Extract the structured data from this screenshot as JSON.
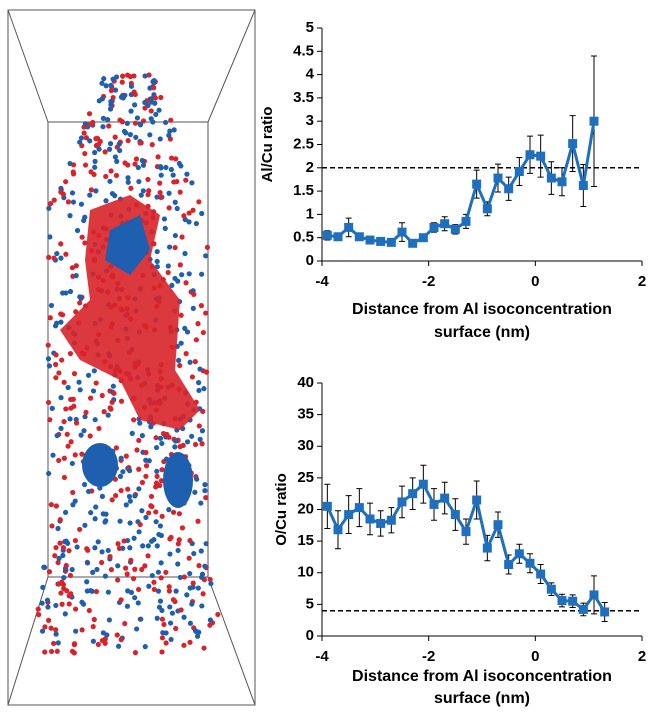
{
  "chart_data": [
    {
      "type": "line",
      "ylabel": "Al/Cu ratio",
      "xlabel": [
        "Distance from Al isoconcentration",
        "surface (nm)"
      ],
      "x": [
        -3.9,
        -3.7,
        -3.5,
        -3.3,
        -3.1,
        -2.9,
        -2.7,
        -2.5,
        -2.3,
        -2.1,
        -1.9,
        -1.7,
        -1.5,
        -1.3,
        -1.1,
        -0.9,
        -0.7,
        -0.5,
        -0.3,
        -0.1,
        0.1,
        0.3,
        0.5,
        0.7,
        0.9,
        1.1
      ],
      "values": [
        0.55,
        0.52,
        0.72,
        0.52,
        0.45,
        0.42,
        0.4,
        0.62,
        0.38,
        0.5,
        0.72,
        0.8,
        0.68,
        0.85,
        1.65,
        1.12,
        1.78,
        1.55,
        1.92,
        2.28,
        2.25,
        1.78,
        1.7,
        2.52,
        1.62,
        3.0
      ],
      "errors": [
        0.1,
        0.08,
        0.2,
        0.08,
        0.05,
        0.05,
        0.05,
        0.2,
        0.05,
        0.08,
        0.1,
        0.15,
        0.1,
        0.15,
        0.3,
        0.15,
        0.3,
        0.25,
        0.3,
        0.4,
        0.45,
        0.35,
        0.3,
        0.6,
        0.45,
        1.4
      ],
      "color": "#1f6fbf",
      "reference_line": 2,
      "xlim": [
        -4,
        2
      ],
      "xticks": [
        -4,
        -2,
        0,
        2
      ],
      "ylim": [
        0,
        5
      ],
      "yticks": [
        0,
        0.5,
        1,
        1.5,
        2,
        2.5,
        3,
        3.5,
        4,
        4.5,
        5
      ]
    },
    {
      "type": "line",
      "ylabel": "O/Cu ratio",
      "xlabel": [
        "Distance from Al isoconcentration",
        "surface (nm)"
      ],
      "x": [
        -3.9,
        -3.7,
        -3.5,
        -3.3,
        -3.1,
        -2.9,
        -2.7,
        -2.5,
        -2.3,
        -2.1,
        -1.9,
        -1.7,
        -1.5,
        -1.3,
        -1.1,
        -0.9,
        -0.7,
        -0.5,
        -0.3,
        -0.1,
        0.1,
        0.3,
        0.5,
        0.7,
        0.9,
        1.1,
        1.3
      ],
      "values": [
        20.5,
        16.8,
        19.2,
        20.3,
        18.5,
        17.8,
        18.3,
        21.2,
        22.5,
        24.0,
        20.8,
        21.8,
        19.2,
        16.5,
        21.5,
        13.9,
        17.6,
        11.3,
        13.0,
        11.5,
        9.8,
        7.4,
        5.6,
        5.5,
        4.2,
        6.5,
        3.8
      ],
      "errors": [
        3.5,
        3,
        3,
        3,
        2.5,
        2,
        2,
        2.5,
        2.5,
        3,
        2.5,
        2.5,
        2.5,
        2,
        3,
        2,
        2,
        1.5,
        1.5,
        1.5,
        1.5,
        1,
        1,
        1,
        1,
        3,
        1.5
      ],
      "color": "#1f6fbf",
      "reference_line": 4,
      "xlim": [
        -4,
        2
      ],
      "xticks": [
        -4,
        -2,
        0,
        2
      ],
      "ylim": [
        0,
        40
      ],
      "yticks": [
        0,
        5,
        10,
        15,
        20,
        25,
        30,
        35,
        40
      ]
    }
  ]
}
